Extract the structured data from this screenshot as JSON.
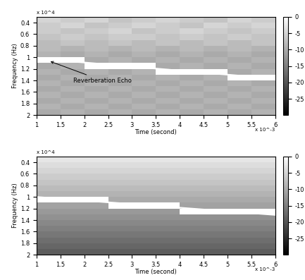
{
  "chart_data": [
    {
      "type": "heatmap",
      "xlabel": "Time (second)",
      "ylabel": "Frequency (Hz)",
      "axis_multipliers": {
        "x": "x 10^-3",
        "y": "x 10^4"
      },
      "x_edges": [
        1,
        1.5,
        2,
        2.5,
        3,
        3.5,
        4,
        4.5,
        5,
        5.5,
        6
      ],
      "y_edges": [
        0.3,
        0.4,
        0.5,
        0.6,
        0.7,
        0.8,
        0.9,
        1.0,
        1.1,
        1.2,
        1.3,
        1.4,
        1.5,
        1.6,
        1.7,
        1.8,
        1.9,
        2.0
      ],
      "cells": [
        [
          -5,
          -6,
          -5,
          -7,
          -6,
          -5,
          -6,
          -7,
          -5,
          -6
        ],
        [
          -6,
          -5,
          -7,
          -6,
          -5,
          -6,
          -7,
          -5,
          -6,
          -5
        ],
        [
          -6,
          -7,
          -6,
          -5,
          -7,
          -6,
          -5,
          -6,
          -7,
          -6
        ],
        [
          -7,
          -6,
          -7,
          -6,
          -6,
          -7,
          -6,
          -7,
          -6,
          -7
        ],
        [
          -8,
          -7,
          -8,
          -7,
          -8,
          -7,
          -8,
          -7,
          -8,
          -7
        ],
        [
          -8,
          -9,
          -8,
          -9,
          -8,
          -9,
          -8,
          -9,
          -8,
          -9
        ],
        [
          -9,
          -10,
          -9,
          -10,
          -9,
          -10,
          -9,
          -10,
          -9,
          -10
        ],
        [
          0,
          0,
          -10,
          -9,
          -10,
          -9,
          -10,
          -9,
          -10,
          -9
        ],
        [
          -10,
          -9,
          0,
          0,
          0,
          -10,
          -9,
          -10,
          -9,
          -10
        ],
        [
          -9,
          -10,
          -9,
          -10,
          -9,
          0,
          0,
          0,
          -10,
          -9
        ],
        [
          -10,
          -9,
          -10,
          -9,
          -10,
          -9,
          -10,
          -9,
          0,
          0
        ],
        [
          -9,
          -10,
          -9,
          -10,
          -9,
          -10,
          -9,
          -10,
          -9,
          -10
        ],
        [
          -10,
          -9,
          -10,
          -9,
          -10,
          -9,
          -10,
          -9,
          -10,
          -9
        ],
        [
          -9,
          -10,
          -9,
          -10,
          -9,
          -10,
          -9,
          -10,
          -9,
          -10
        ],
        [
          -10,
          -9,
          -10,
          -9,
          -10,
          -9,
          -10,
          -9,
          -10,
          -9
        ],
        [
          -9,
          -10,
          -9,
          -10,
          -9,
          -10,
          -9,
          -10,
          -9,
          -10
        ],
        [
          -10,
          -9,
          -10,
          -9,
          -10,
          -9,
          -10,
          -9,
          -10,
          -9
        ]
      ],
      "ridge": {
        "x": [
          1,
          6
        ],
        "values": [
          1.02,
          1.37
        ],
        "color": "#ffffff"
      },
      "annotation": {
        "text": "Reverberation Echo",
        "x": 1.25,
        "y": 1.06
      },
      "xlim": [
        1,
        6
      ],
      "xticks": [
        1,
        1.5,
        2,
        2.5,
        3,
        3.5,
        4,
        4.5,
        5,
        5.5,
        6
      ],
      "ylim": [
        2,
        0.3
      ],
      "yticks": [
        0.4,
        0.6,
        0.8,
        1,
        1.2,
        1.4,
        1.6,
        1.8,
        2
      ],
      "colorbar_range": [
        -30,
        0
      ],
      "colorbar_ticks": [
        -25,
        -20,
        -15,
        -10,
        -5,
        0
      ],
      "color": "gray"
    },
    {
      "type": "heatmap",
      "xlabel": "Time (second)",
      "ylabel": "Frequency (Hz)",
      "axis_multipliers": {
        "x": "x 10^-3",
        "y": "x 10^4"
      },
      "x_edges": [
        1,
        1.5,
        2,
        2.5,
        3,
        3.5,
        4,
        4.5,
        5,
        5.5,
        6
      ],
      "y_edges": [
        0.3,
        0.4,
        0.5,
        0.6,
        0.7,
        0.8,
        0.9,
        1.0,
        1.1,
        1.2,
        1.3,
        1.4,
        1.5,
        1.6,
        1.7,
        1.8,
        1.9,
        2.0
      ],
      "cells": [
        [
          -3,
          -3,
          -3,
          -3,
          -3,
          -3,
          -3,
          -3,
          -3,
          -3
        ],
        [
          -4,
          -4,
          -4,
          -4,
          -4,
          -4,
          -4,
          -4,
          -4,
          -4
        ],
        [
          -5,
          -5,
          -5,
          -5,
          -5,
          -5,
          -5,
          -5,
          -5,
          -5
        ],
        [
          -6,
          -6,
          -6,
          -6,
          -6,
          -6,
          -6,
          -6,
          -6,
          -6
        ],
        [
          -7,
          -7,
          -7,
          -7,
          -7,
          -7,
          -7,
          -7,
          -7,
          -7
        ],
        [
          -8,
          -8,
          -8,
          -8,
          -8,
          -8,
          -8,
          -8,
          -8,
          -8
        ],
        [
          -9,
          -9,
          -9,
          -9,
          -9,
          -9,
          -9,
          -9,
          -9,
          -9
        ],
        [
          0,
          0,
          0,
          -10,
          -10,
          -10,
          -10,
          -10,
          -10,
          -10
        ],
        [
          -11,
          -11,
          -11,
          0,
          0,
          0,
          -11,
          -11,
          -11,
          -11
        ],
        [
          -12,
          -12,
          -12,
          -12,
          -12,
          -12,
          0,
          0,
          0,
          0
        ],
        [
          -13,
          -13,
          -13,
          -13,
          -13,
          -13,
          -13,
          -13,
          -13,
          -13
        ],
        [
          -14,
          -14,
          -14,
          -14,
          -14,
          -14,
          -14,
          -14,
          -14,
          -14
        ],
        [
          -15,
          -15,
          -15,
          -15,
          -15,
          -15,
          -15,
          -15,
          -15,
          -15
        ],
        [
          -16,
          -16,
          -16,
          -16,
          -16,
          -16,
          -16,
          -16,
          -16,
          -16
        ],
        [
          -17,
          -17,
          -17,
          -17,
          -17,
          -17,
          -17,
          -17,
          -17,
          -17
        ],
        [
          -18,
          -18,
          -18,
          -18,
          -18,
          -18,
          -18,
          -18,
          -18,
          -18
        ],
        [
          -19,
          -19,
          -19,
          -19,
          -19,
          -19,
          -19,
          -19,
          -19,
          -19
        ]
      ],
      "ridge": {
        "x": [
          1,
          6
        ],
        "values": [
          1.0,
          1.31
        ],
        "color": "#ffffff"
      },
      "xlim": [
        1,
        6
      ],
      "xticks": [
        1,
        1.5,
        2,
        2.5,
        3,
        3.5,
        4,
        4.5,
        5,
        5.5,
        6
      ],
      "ylim": [
        2,
        0.3
      ],
      "yticks": [
        0.4,
        0.6,
        0.8,
        1,
        1.2,
        1.4,
        1.6,
        1.8,
        2
      ],
      "colorbar_range": [
        -30,
        0
      ],
      "colorbar_ticks": [
        -25,
        -20,
        -15,
        -10,
        -5,
        0
      ],
      "color": "gray"
    }
  ]
}
